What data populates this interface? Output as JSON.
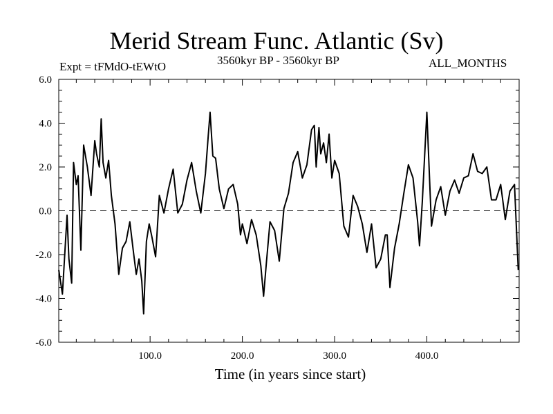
{
  "chart_data": {
    "type": "line",
    "title": "Merid Stream Func. Atlantic (Sv)",
    "expt_label": "Expt = tFMdO-tEWtO",
    "subtitle": "3560kyr BP - 3560kyr BP",
    "months_label": "ALL_MONTHS",
    "xlabel": "Time (in years since start)",
    "ylabel": "",
    "xlim": [
      1,
      500
    ],
    "ylim": [
      -6,
      6
    ],
    "xticks": [
      100,
      200,
      300,
      400
    ],
    "xtick_labels": [
      "100.0",
      "200.0",
      "300.0",
      "400.0"
    ],
    "yticks": [
      6,
      4,
      2,
      0,
      -2,
      -4,
      -6
    ],
    "ytick_labels": [
      "6.0",
      "4.0",
      "2.0",
      "0.0",
      "-2.0",
      "-4.0",
      "-6.0"
    ],
    "reference_line": 0,
    "series": [
      {
        "name": "Merid Stream Func. Atlantic",
        "x": [
          1,
          5,
          10,
          12,
          15,
          17,
          20,
          22,
          25,
          28,
          32,
          36,
          40,
          42,
          45,
          47,
          49,
          52,
          55,
          58,
          62,
          66,
          70,
          74,
          78,
          82,
          85,
          88,
          91,
          93,
          96,
          99,
          102,
          106,
          110,
          115,
          120,
          125,
          130,
          135,
          140,
          145,
          150,
          155,
          160,
          163,
          165,
          168,
          171,
          175,
          180,
          185,
          190,
          195,
          198,
          200,
          205,
          210,
          215,
          220,
          223,
          226,
          230,
          235,
          240,
          245,
          250,
          255,
          260,
          265,
          270,
          275,
          278,
          280,
          283,
          285,
          288,
          291,
          294,
          297,
          300,
          305,
          310,
          315,
          320,
          325,
          330,
          335,
          340,
          345,
          350,
          355,
          357,
          360,
          365,
          370,
          375,
          380,
          385,
          390,
          392,
          395,
          400,
          405,
          410,
          415,
          420,
          425,
          430,
          435,
          440,
          445,
          450,
          455,
          460,
          465,
          470,
          475,
          480,
          485,
          490,
          495,
          499
        ],
        "values": [
          -2.7,
          -3.8,
          -0.2,
          -2.2,
          -3.3,
          2.2,
          1.2,
          1.6,
          -1.8,
          3.0,
          2.0,
          0.7,
          3.2,
          2.6,
          2.0,
          4.2,
          2.2,
          1.5,
          2.3,
          0.7,
          -0.6,
          -2.9,
          -1.7,
          -1.4,
          -0.5,
          -1.9,
          -2.9,
          -2.2,
          -3.2,
          -4.7,
          -1.4,
          -0.6,
          -1.2,
          -2.1,
          0.7,
          -0.1,
          1.0,
          1.9,
          -0.1,
          0.3,
          1.4,
          2.2,
          0.9,
          -0.1,
          1.7,
          3.4,
          4.5,
          2.5,
          2.4,
          1.0,
          0.1,
          1.0,
          1.2,
          0.3,
          -1.1,
          -0.6,
          -1.5,
          -0.4,
          -1.1,
          -2.5,
          -3.9,
          -2.4,
          -0.5,
          -0.9,
          -2.3,
          0.1,
          0.8,
          2.2,
          2.7,
          1.5,
          2.1,
          3.7,
          3.9,
          2.0,
          3.8,
          2.6,
          3.1,
          2.2,
          3.5,
          1.5,
          2.3,
          1.7,
          -0.7,
          -1.2,
          0.7,
          0.2,
          -0.6,
          -1.9,
          -0.6,
          -2.6,
          -2.2,
          -1.1,
          -1.1,
          -3.5,
          -1.7,
          -0.6,
          0.8,
          2.1,
          1.5,
          -0.5,
          -1.6,
          0.4,
          4.5,
          -0.7,
          0.5,
          1.1,
          -0.2,
          0.9,
          1.4,
          0.8,
          1.5,
          1.6,
          2.6,
          1.8,
          1.7,
          2.0,
          0.5,
          0.5,
          1.2,
          -0.4,
          0.9,
          1.2,
          -2.7
        ]
      }
    ]
  }
}
